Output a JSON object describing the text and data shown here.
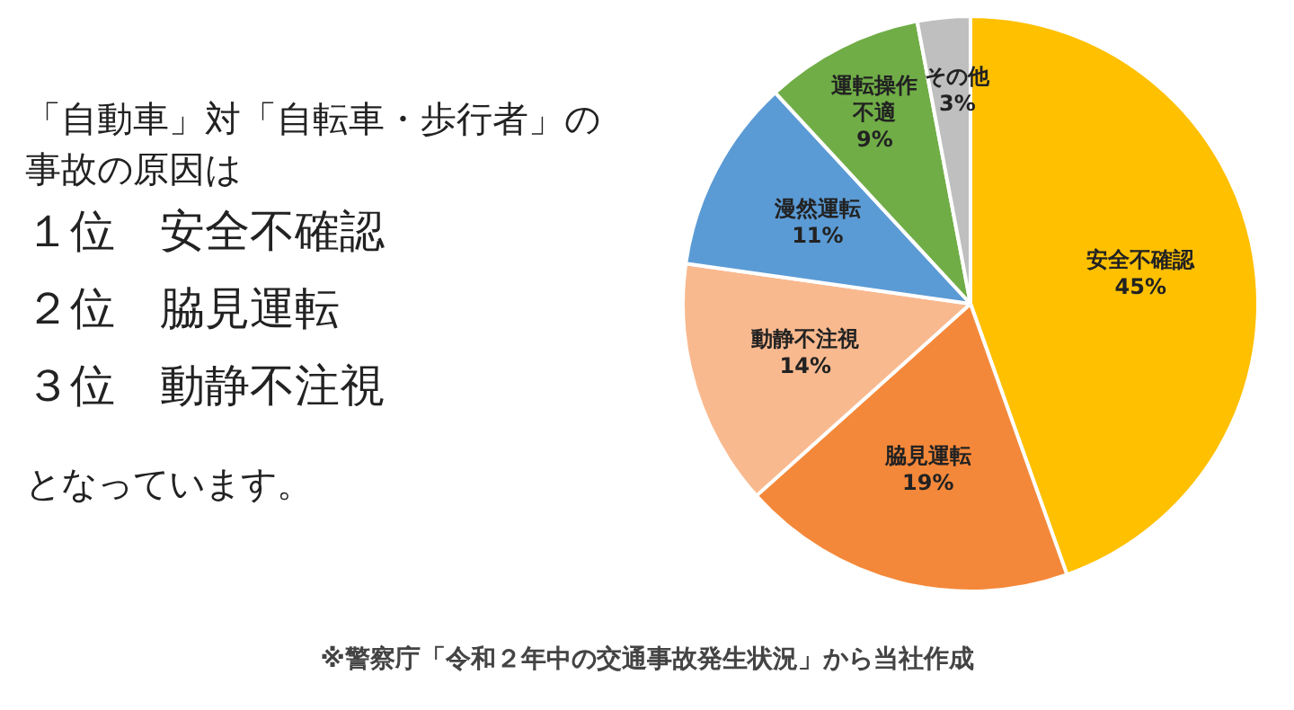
{
  "chart_data": {
    "type": "pie",
    "title": "「自動車」対「自転車・歩行者」の事故の原因は",
    "categories": [
      "安全不確認",
      "脇見運転",
      "動静不注視",
      "漫然運転",
      "運転操作不適",
      "その他"
    ],
    "values": [
      45,
      19,
      14,
      11,
      9,
      3
    ],
    "value_labels": [
      "45%",
      "19%",
      "14%",
      "11%",
      "9%",
      "3%"
    ],
    "colors": [
      "#ffc000",
      "#f4883a",
      "#f9b98f",
      "#5b9bd5",
      "#70ad47",
      "#bfbfbf"
    ],
    "legend": false,
    "annotations": [
      "１位　安全不確認",
      "２位　脇見運転",
      "３位　動静不注視",
      "となっています。",
      "※警察庁「令和２年中の交通事故発生状況」から当社作成"
    ]
  }
}
